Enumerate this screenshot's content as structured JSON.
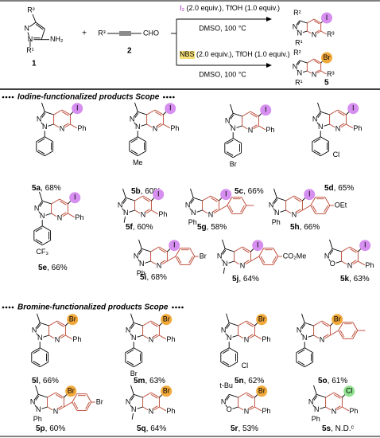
{
  "scheme": {
    "reactant1": {
      "atoms": [
        "R²",
        "N",
        "N",
        "R¹",
        "NH₂"
      ],
      "number": "1"
    },
    "plus": "+",
    "reactant2": {
      "r": "R³",
      "group": "CHO",
      "number": "2"
    },
    "conditions": [
      {
        "reagent": "I₂",
        "text": " (2.0 equiv.), TfOH (1.0 equiv.)",
        "solvent": "DMSO, 100 °C"
      },
      {
        "reagent": "NBS",
        "text": " (2.0 equiv.), TfOH (1.0 equiv.)",
        "solvent": "DMSO, 100 °C"
      }
    ],
    "products": [
      {
        "halogen": "I",
        "ring_atoms": [
          "N",
          "N",
          "N"
        ],
        "c3": "R²",
        "n1": "R¹",
        "c6": "R³"
      },
      {
        "halogen": "Br",
        "ring_atoms": [
          "N",
          "N",
          "N"
        ],
        "c3": "R²",
        "n1": "R¹",
        "c6": "R³"
      }
    ],
    "number": "5"
  },
  "halogen_colors": {
    "I": "#d68ff0",
    "Br": "#f2a93b",
    "Cl": "#8fe08f"
  },
  "sections": [
    "Iodine-functionalized products Scope",
    "Bromine-functionalized products Scope"
  ],
  "products": [
    {
      "id": "5a",
      "yield_text": ", 68%",
      "halogen": "I",
      "ring_atoms": [
        "N",
        "N",
        "N"
      ],
      "c6": "Ph",
      "n1_aryl": true
    },
    {
      "id": "5b",
      "yield_text": ", 60%",
      "halogen": "I",
      "ring_atoms": [
        "N",
        "N",
        "N"
      ],
      "c6": "Ph",
      "n1_aryl": true,
      "n1_para": "Me"
    },
    {
      "id": "5c",
      "yield_text": ", 66%",
      "halogen": "I",
      "ring_atoms": [
        "N",
        "N",
        "N"
      ],
      "c6": "Ph",
      "n1_aryl": true,
      "n1_para": "Br"
    },
    {
      "id": "5d",
      "yield_text": ", 65%",
      "halogen": "I",
      "ring_atoms": [
        "N",
        "N",
        "N"
      ],
      "c6": "Ph",
      "n1_aryl": true,
      "n1_meta": "Cl"
    },
    {
      "id": "5e",
      "yield_text": ", 66%",
      "halogen": "I",
      "ring_atoms": [
        "N",
        "N",
        "N"
      ],
      "c6": "Ph",
      "n1_aryl": true,
      "n1_para": "CF₃"
    },
    {
      "id": "5f",
      "yield_text": ", 60%",
      "halogen": "I",
      "ring_atoms": [
        "N",
        "N",
        "N"
      ],
      "c6": "Ph",
      "n1_methyl": true
    },
    {
      "id": "5g",
      "yield_text": ", 58%",
      "halogen": "I",
      "ring_atoms": [
        "N",
        "N",
        "N"
      ],
      "n1": "Ph",
      "c6_aryl": true,
      "c6_para_methyl": true
    },
    {
      "id": "5h",
      "yield_text": ", 66%",
      "halogen": "I",
      "ring_atoms": [
        "N",
        "N",
        "N"
      ],
      "n1": "Ph",
      "c6_aryl": true,
      "c6_para": "OEt"
    },
    {
      "id": "5i",
      "yield_text": ", 68%",
      "halogen": "I",
      "ring_atoms": [
        "N",
        "N",
        "N"
      ],
      "n1": "Ph",
      "c6_aryl": true,
      "c6_para": "Br"
    },
    {
      "id": "5j",
      "yield_text": ", 64%",
      "halogen": "I",
      "ring_atoms": [
        "N",
        "N",
        "N"
      ],
      "n1_methyl": true,
      "c6_aryl": true,
      "c6_para": "CO₂Me"
    },
    {
      "id": "5k",
      "yield_text": ", 63%",
      "halogen": "I",
      "ring_atoms": [
        "N",
        "O",
        "N"
      ],
      "c6": "Ph"
    },
    {
      "id": "5l",
      "yield_text": ", 66%",
      "halogen": "Br",
      "ring_atoms": [
        "N",
        "N",
        "N"
      ],
      "c6": "Ph",
      "n1_aryl": true
    },
    {
      "id": "5m",
      "yield_text": ", 63%",
      "halogen": "Br",
      "ring_atoms": [
        "N",
        "N",
        "N"
      ],
      "c6": "Ph",
      "n1_aryl": true,
      "n1_para": "Br"
    },
    {
      "id": "5n",
      "yield_text": ", 62%",
      "halogen": "Br",
      "ring_atoms": [
        "N",
        "N",
        "N"
      ],
      "c6": "Ph",
      "n1_aryl": true,
      "n1_meta": "Cl"
    },
    {
      "id": "5o",
      "yield_text": ", 61%",
      "halogen": "Br",
      "ring_atoms": [
        "N",
        "N",
        "N"
      ],
      "n1_aryl": true,
      "c6_aryl": true,
      "c6_para_methyl": true
    },
    {
      "id": "5p",
      "yield_text": ", 60%",
      "halogen": "Br",
      "ring_atoms": [
        "N",
        "N",
        "N"
      ],
      "n1": "Ph",
      "c6_aryl": true,
      "c6_para": "Br"
    },
    {
      "id": "5q",
      "yield_text": ", 64%",
      "halogen": "Br",
      "ring_atoms": [
        "N",
        "N",
        "N"
      ],
      "c6": "Ph",
      "n1_methyl": true
    },
    {
      "id": "5r",
      "yield_text": ", 53%",
      "halogen": "Br",
      "ring_atoms": [
        "N",
        "O",
        "N"
      ],
      "c3": "t-Bu",
      "c6": "Ph"
    },
    {
      "id": "5s",
      "yield_text": ", N.D.ᶜ",
      "halogen": "Cl",
      "ring_atoms": [
        "N",
        "N",
        "N"
      ],
      "n1": "Ph",
      "c6": "Ph"
    }
  ]
}
